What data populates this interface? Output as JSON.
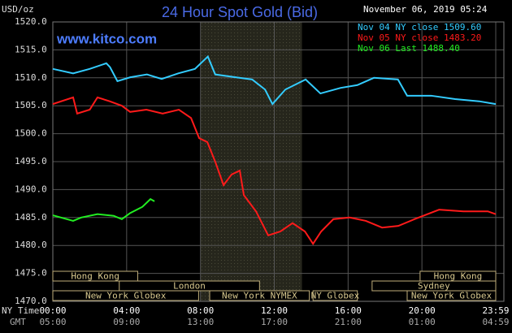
{
  "chart_data": {
    "type": "line",
    "title": "24 Hour Spot Gold (Bid)",
    "unit_label": "USD/oz",
    "site": "www.kitco.com",
    "timestamp": "November 06, 2019 05:24",
    "x_row_label": "NY Time",
    "x2_row_label": "GMT",
    "xlim": [
      0,
      24
    ],
    "xticks": [
      {
        "value": 0,
        "label": "00:00"
      },
      {
        "value": 4,
        "label": "04:00"
      },
      {
        "value": 8,
        "label": "08:00"
      },
      {
        "value": 12,
        "label": "12:00"
      },
      {
        "value": 16,
        "label": "16:00"
      },
      {
        "value": 20,
        "label": "20:00"
      },
      {
        "value": 24,
        "label": "23:59"
      }
    ],
    "x2tick_labels": [
      "05:00",
      "09:00",
      "13:00",
      "17:00",
      "21:00",
      "01:00",
      "04:59"
    ],
    "ylim": [
      1470,
      1520
    ],
    "yticks": [
      {
        "value": 1470,
        "label": "1470.0"
      },
      {
        "value": 1475,
        "label": "1475.0"
      },
      {
        "value": 1480,
        "label": "1480.0"
      },
      {
        "value": 1485,
        "label": "1485.0"
      },
      {
        "value": 1490,
        "label": "1490.0"
      },
      {
        "value": 1495,
        "label": "1495.0"
      },
      {
        "value": 1500,
        "label": "1500.0"
      },
      {
        "value": 1505,
        "label": "1505.0"
      },
      {
        "value": 1510,
        "label": "1510.0"
      },
      {
        "value": 1515,
        "label": "1515.0"
      },
      {
        "value": 1520,
        "label": "1520.0"
      }
    ],
    "grid": true,
    "highlight_range": [
      8,
      13.5
    ],
    "series": [
      {
        "name": "Nov 04 NY close 1509.60",
        "color": "#33ccff",
        "x": [
          0,
          1.1,
          2.0,
          2.9,
          3.1,
          3.5,
          4.2,
          5.1,
          5.9,
          6.8,
          7.7,
          8.4,
          8.8,
          9.9,
          10.8,
          11.5,
          11.9,
          12.6,
          13.7,
          14.5,
          15.6,
          16.5,
          17.4,
          18.7,
          19.2,
          20.5,
          21.8,
          23.1,
          24.0
        ],
        "values": [
          1511.6,
          1510.8,
          1511.6,
          1512.6,
          1511.9,
          1509.4,
          1510.1,
          1510.6,
          1509.8,
          1510.8,
          1511.6,
          1513.8,
          1510.6,
          1510.1,
          1509.7,
          1507.9,
          1505.3,
          1507.9,
          1509.7,
          1507.2,
          1508.2,
          1508.7,
          1510.0,
          1509.7,
          1506.8,
          1506.8,
          1506.2,
          1505.8,
          1505.3
        ]
      },
      {
        "name": "Nov 05 NY close 1483.20",
        "color": "#ff1a1a",
        "x": [
          0,
          1.1,
          1.32,
          2.0,
          2.42,
          3.08,
          3.74,
          4.19,
          5.07,
          5.95,
          6.83,
          7.49,
          7.93,
          8.37,
          8.81,
          9.25,
          9.69,
          10.13,
          10.35,
          11.01,
          11.67,
          12.33,
          12.99,
          13.66,
          14.1,
          14.54,
          15.2,
          16.08,
          16.96,
          17.84,
          18.72,
          19.6,
          20.93,
          22.25,
          23.57,
          24.0
        ],
        "values": [
          1505.3,
          1506.5,
          1503.6,
          1504.3,
          1506.5,
          1505.8,
          1505.0,
          1503.9,
          1504.3,
          1503.6,
          1504.3,
          1502.8,
          1499.2,
          1498.5,
          1494.9,
          1490.8,
          1492.7,
          1493.4,
          1489.0,
          1486.1,
          1481.8,
          1482.5,
          1484.0,
          1482.5,
          1480.3,
          1482.5,
          1484.7,
          1485.0,
          1484.4,
          1483.2,
          1483.5,
          1484.7,
          1486.4,
          1486.1,
          1486.1,
          1485.6
        ]
      },
      {
        "name": "Nov 06 Last 1488.40",
        "color": "#22ee22",
        "x": [
          0,
          0.44,
          1.1,
          1.54,
          2.42,
          3.3,
          3.74,
          4.19,
          4.85,
          5.29,
          5.51
        ],
        "values": [
          1485.4,
          1485.0,
          1484.4,
          1485.0,
          1485.6,
          1485.3,
          1484.7,
          1485.8,
          1486.9,
          1488.3,
          1487.9
        ]
      }
    ],
    "sessions": [
      {
        "label": "Hong Kong",
        "start": 0,
        "end": 4.6
      },
      {
        "label": "Hong Kong",
        "start": 19.9,
        "end": 24
      },
      {
        "label": "London",
        "start": 3.6,
        "end": 11.2
      },
      {
        "label": "Sydney",
        "start": 17.3,
        "end": 24
      },
      {
        "label": "New York Globex",
        "start": 0,
        "end": 7.9
      },
      {
        "label": "New York NYMEX",
        "start": 8.5,
        "end": 13.9
      },
      {
        "label": "NY Globex",
        "start": 14.1,
        "end": 16.5
      },
      {
        "label": "New York Globex",
        "start": 19.2,
        "end": 24
      }
    ]
  }
}
